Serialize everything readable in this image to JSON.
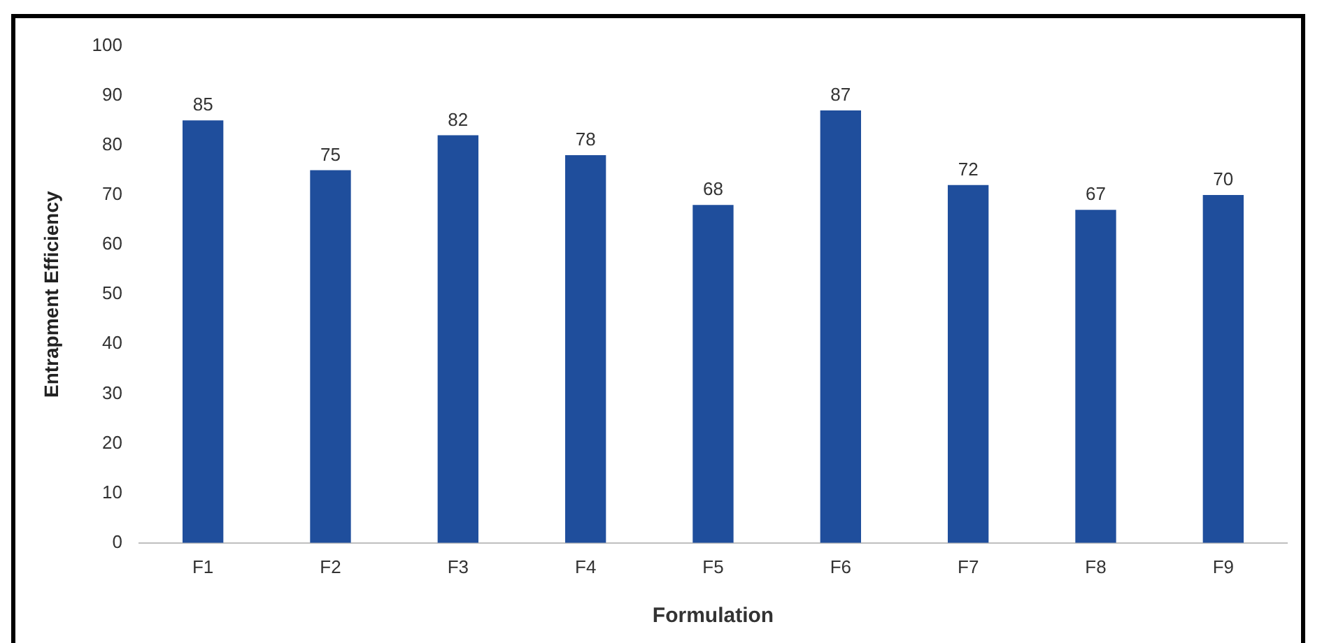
{
  "chart_data": {
    "type": "bar",
    "xlabel": "Formulation",
    "ylabel": "Entrapment Efficiency",
    "categories": [
      "F1",
      "F2",
      "F3",
      "F4",
      "F5",
      "F6",
      "F7",
      "F8",
      "F9"
    ],
    "values": [
      85,
      75,
      82,
      78,
      68,
      87,
      72,
      67,
      70
    ],
    "color": "#1f4e9c",
    "ylim": [
      0,
      100
    ],
    "yticks": [
      0,
      10,
      20,
      30,
      40,
      50,
      60,
      70,
      80,
      90,
      100
    ],
    "grid": false,
    "legend": false,
    "data_labels": true
  }
}
